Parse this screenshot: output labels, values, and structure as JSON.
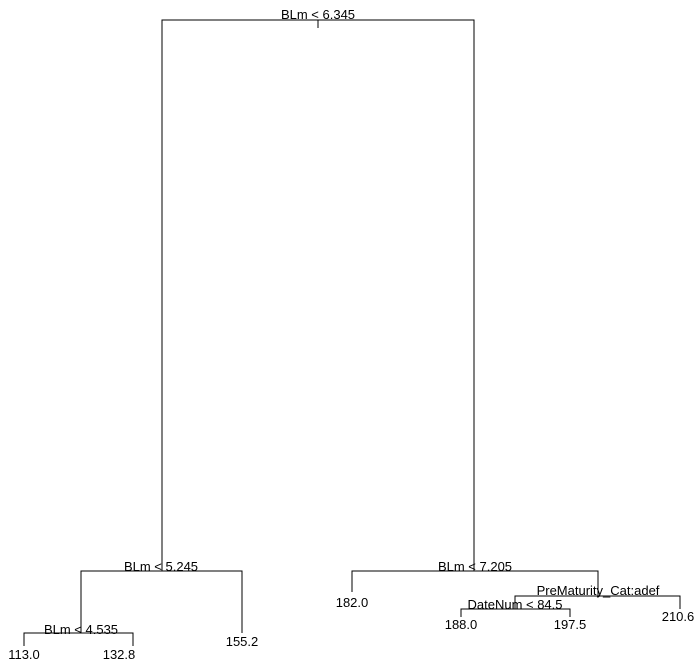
{
  "tree": {
    "root": {
      "split": "BLm < 6.345",
      "left": {
        "split": "BLm < 5.245",
        "left": {
          "split": "BLm < 4.535",
          "left": {
            "leaf": "113.0"
          },
          "right": {
            "leaf": "132.8"
          }
        },
        "right": {
          "leaf": "155.2"
        }
      },
      "right": {
        "split": "BLm < 7.205",
        "left": {
          "leaf": "182.0"
        },
        "right": {
          "split": "PreMaturity_Cat:adef",
          "left": {
            "split": "DateNum < 84.5",
            "left": {
              "leaf": "188.0"
            },
            "right": {
              "leaf": "197.5"
            }
          },
          "right": {
            "leaf": "210.6"
          }
        }
      }
    }
  }
}
